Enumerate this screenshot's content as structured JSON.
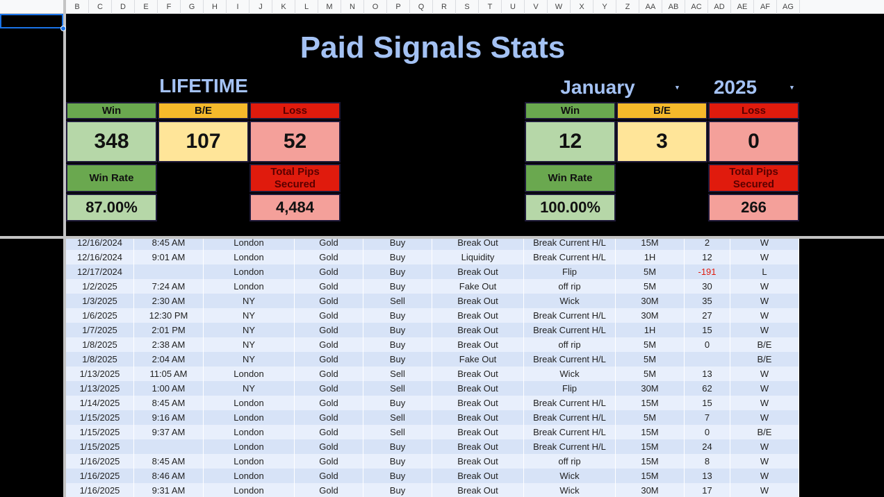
{
  "column_headers": [
    "B",
    "C",
    "D",
    "E",
    "F",
    "G",
    "H",
    "I",
    "J",
    "K",
    "L",
    "M",
    "N",
    "O",
    "P",
    "Q",
    "R",
    "S",
    "T",
    "U",
    "V",
    "W",
    "X",
    "Y",
    "Z",
    "AA",
    "AB",
    "AC",
    "AD",
    "AE",
    "AF",
    "AG"
  ],
  "title": "Paid Signals Stats",
  "lifetime": {
    "label": "LIFETIME",
    "win_label": "Win",
    "be_label": "B/E",
    "loss_label": "Loss",
    "win": 348,
    "be": 107,
    "loss": 52,
    "win_rate_label": "Win Rate",
    "win_rate": "87.00%",
    "pips_label": "Total Pips Secured",
    "pips": "4,484"
  },
  "monthly": {
    "month": "January",
    "year": "2025",
    "win_label": "Win",
    "be_label": "B/E",
    "loss_label": "Loss",
    "win": 12,
    "be": 3,
    "loss": 0,
    "win_rate_label": "Win Rate",
    "win_rate": "100.00%",
    "pips_label": "Total Pips Secured",
    "pips": 266
  },
  "table": {
    "rows": [
      [
        "12/16/2024",
        "8:45 AM",
        "London",
        "Gold",
        "Buy",
        "Break Out",
        "Break Current H/L",
        "15M",
        2,
        "W"
      ],
      [
        "12/16/2024",
        "9:01 AM",
        "London",
        "Gold",
        "Buy",
        "Liquidity",
        "Break Current H/L",
        "1H",
        12,
        "W"
      ],
      [
        "12/17/2024",
        null,
        "London",
        "Gold",
        "Buy",
        "Break Out",
        "Flip",
        "5M",
        -191,
        "L"
      ],
      [
        "1/2/2025",
        "7:24 AM",
        "London",
        "Gold",
        "Buy",
        "Fake Out",
        "off rip",
        "5M",
        30,
        "W"
      ],
      [
        "1/3/2025",
        "2:30 AM",
        "NY",
        "Gold",
        "Sell",
        "Break Out",
        "Wick",
        "30M",
        35,
        "W"
      ],
      [
        "1/6/2025",
        "12:30 PM",
        "NY",
        "Gold",
        "Buy",
        "Break Out",
        "Break Current H/L",
        "30M",
        27,
        "W"
      ],
      [
        "1/7/2025",
        "2:01 PM",
        "NY",
        "Gold",
        "Buy",
        "Break Out",
        "Break Current H/L",
        "1H",
        15,
        "W"
      ],
      [
        "1/8/2025",
        "2:38 AM",
        "NY",
        "Gold",
        "Buy",
        "Break Out",
        "off rip",
        "5M",
        0,
        "B/E"
      ],
      [
        "1/8/2025",
        "2:04 AM",
        "NY",
        "Gold",
        "Buy",
        "Fake Out",
        "Break Current H/L",
        "5M",
        null,
        "B/E"
      ],
      [
        "1/13/2025",
        "11:05 AM",
        "London",
        "Gold",
        "Sell",
        "Break Out",
        "Wick",
        "5M",
        13,
        "W"
      ],
      [
        "1/13/2025",
        "1:00 AM",
        "NY",
        "Gold",
        "Sell",
        "Break Out",
        "Flip",
        "30M",
        62,
        "W"
      ],
      [
        "1/14/2025",
        "8:45 AM",
        "London",
        "Gold",
        "Buy",
        "Break Out",
        "Break Current H/L",
        "15M",
        15,
        "W"
      ],
      [
        "1/15/2025",
        "9:16 AM",
        "London",
        "Gold",
        "Sell",
        "Break Out",
        "Break Current H/L",
        "5M",
        7,
        "W"
      ],
      [
        "1/15/2025",
        "9:37 AM",
        "London",
        "Gold",
        "Sell",
        "Break Out",
        "Break Current H/L",
        "15M",
        0,
        "B/E"
      ],
      [
        "1/15/2025",
        null,
        "London",
        "Gold",
        "Buy",
        "Break Out",
        "Break Current H/L",
        "15M",
        24,
        "W"
      ],
      [
        "1/16/2025",
        "8:45 AM",
        "London",
        "Gold",
        "Buy",
        "Break Out",
        "off rip",
        "15M",
        8,
        "W"
      ],
      [
        "1/16/2025",
        "8:46 AM",
        "London",
        "Gold",
        "Buy",
        "Break Out",
        "Wick",
        "15M",
        13,
        "W"
      ],
      [
        "1/16/2025",
        "9:31 AM",
        "London",
        "Gold",
        "Buy",
        "Break Out",
        "Wick",
        "30M",
        17,
        "W"
      ]
    ]
  }
}
